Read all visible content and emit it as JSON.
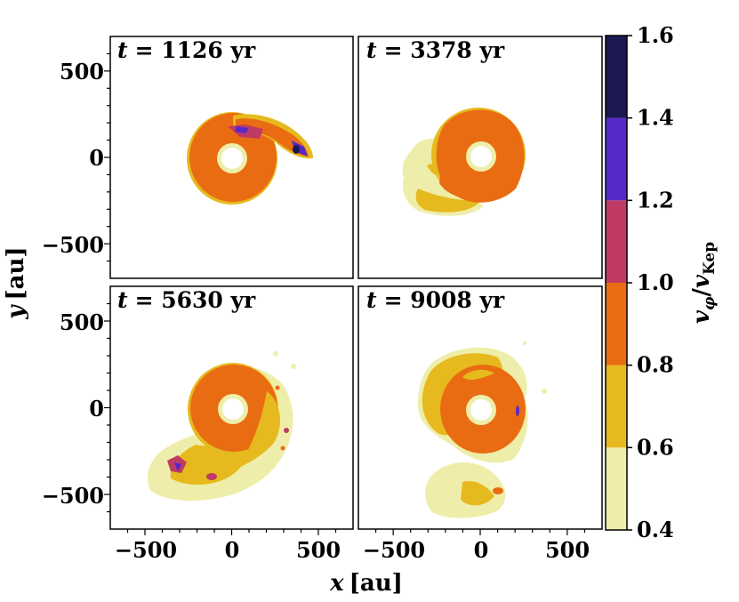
{
  "chart_data": {
    "type": "heatmap",
    "title": "",
    "xlabel": "x [au]",
    "ylabel": "y [au]",
    "xlim": [
      -700,
      700
    ],
    "ylim": [
      -700,
      700
    ],
    "xticks": [
      -500,
      0,
      500
    ],
    "yticks": [
      -500,
      0,
      500
    ],
    "xtick_labels": [
      "−500",
      "0",
      "500"
    ],
    "ytick_labels": [
      "500",
      "0",
      "−500"
    ],
    "colorbar": {
      "label": "vφ/vKep",
      "label_parts": {
        "v1": "v",
        "sub1": "φ",
        "slash": "/",
        "v2": "v",
        "sub2": "Kep"
      },
      "levels": [
        0.4,
        0.6,
        0.8,
        1.0,
        1.2,
        1.4,
        1.6
      ],
      "tick_labels": [
        "0.4",
        "0.6",
        "0.8",
        "1.0",
        "1.2",
        "1.4",
        "1.6"
      ],
      "colors": [
        "#eeeeaa",
        "#e6ba1e",
        "#ea6c12",
        "#bf3b64",
        "#5528c8",
        "#1b1852"
      ]
    },
    "panels": [
      {
        "label": "t = 1126 yr",
        "t_prefix": "t",
        "t_value": "= 1126 yr",
        "time_yr": 1126
      },
      {
        "label": "t = 3378 yr",
        "t_prefix": "t",
        "t_value": "= 3378 yr",
        "time_yr": 3378
      },
      {
        "label": "t = 5630 yr",
        "t_prefix": "t",
        "t_value": "= 5630 yr",
        "time_yr": 5630
      },
      {
        "label": "t = 9008 yr",
        "t_prefix": "t",
        "t_value": "= 9008 yr",
        "time_yr": 9008
      }
    ]
  }
}
